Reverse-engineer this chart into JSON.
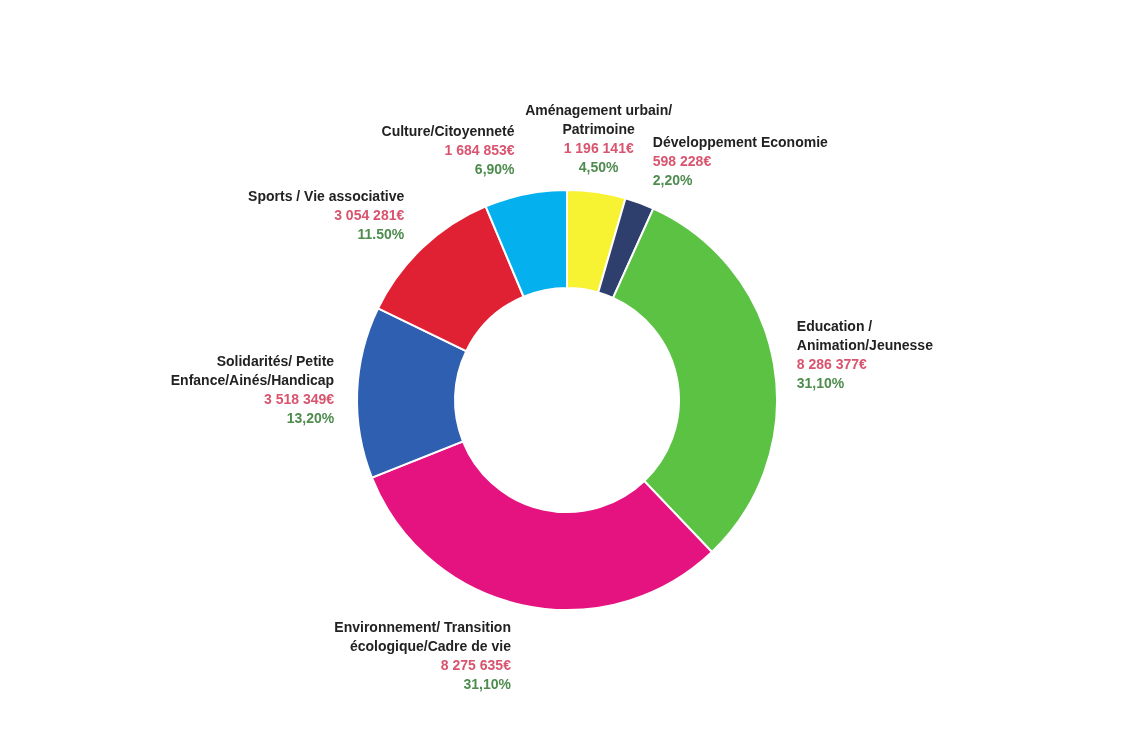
{
  "chart_data": {
    "type": "donut",
    "categories": [
      "Aménagement urbain/ Patrimoine",
      "Développement Economie",
      "Education / Animation/Jeunesse",
      "Environnement/ Transition écologique/Cadre de vie",
      "Solidarités/ Petite Enfance/Ainés/Handicap",
      "Sports / Vie associative",
      "Culture/Citoyenneté"
    ],
    "values": [
      1196141,
      598228,
      8286377,
      8275635,
      3518349,
      3054281,
      1684853
    ],
    "colors": [
      "#f7f232",
      "#2e3f6e",
      "#5cc244",
      "#e5137f",
      "#2e5fb0",
      "#e02033",
      "#05b0ef"
    ],
    "value_labels": [
      "1 196 141€",
      "598 228€",
      "8 286 377€",
      "8 275 635€",
      "3 518 349€",
      "3 054 281€",
      "1 684 853€"
    ],
    "annotations": [
      "4,50%",
      "2,20%",
      "31,10%",
      "31,10%",
      "13,20%",
      "11.50%",
      "6,90%"
    ]
  }
}
